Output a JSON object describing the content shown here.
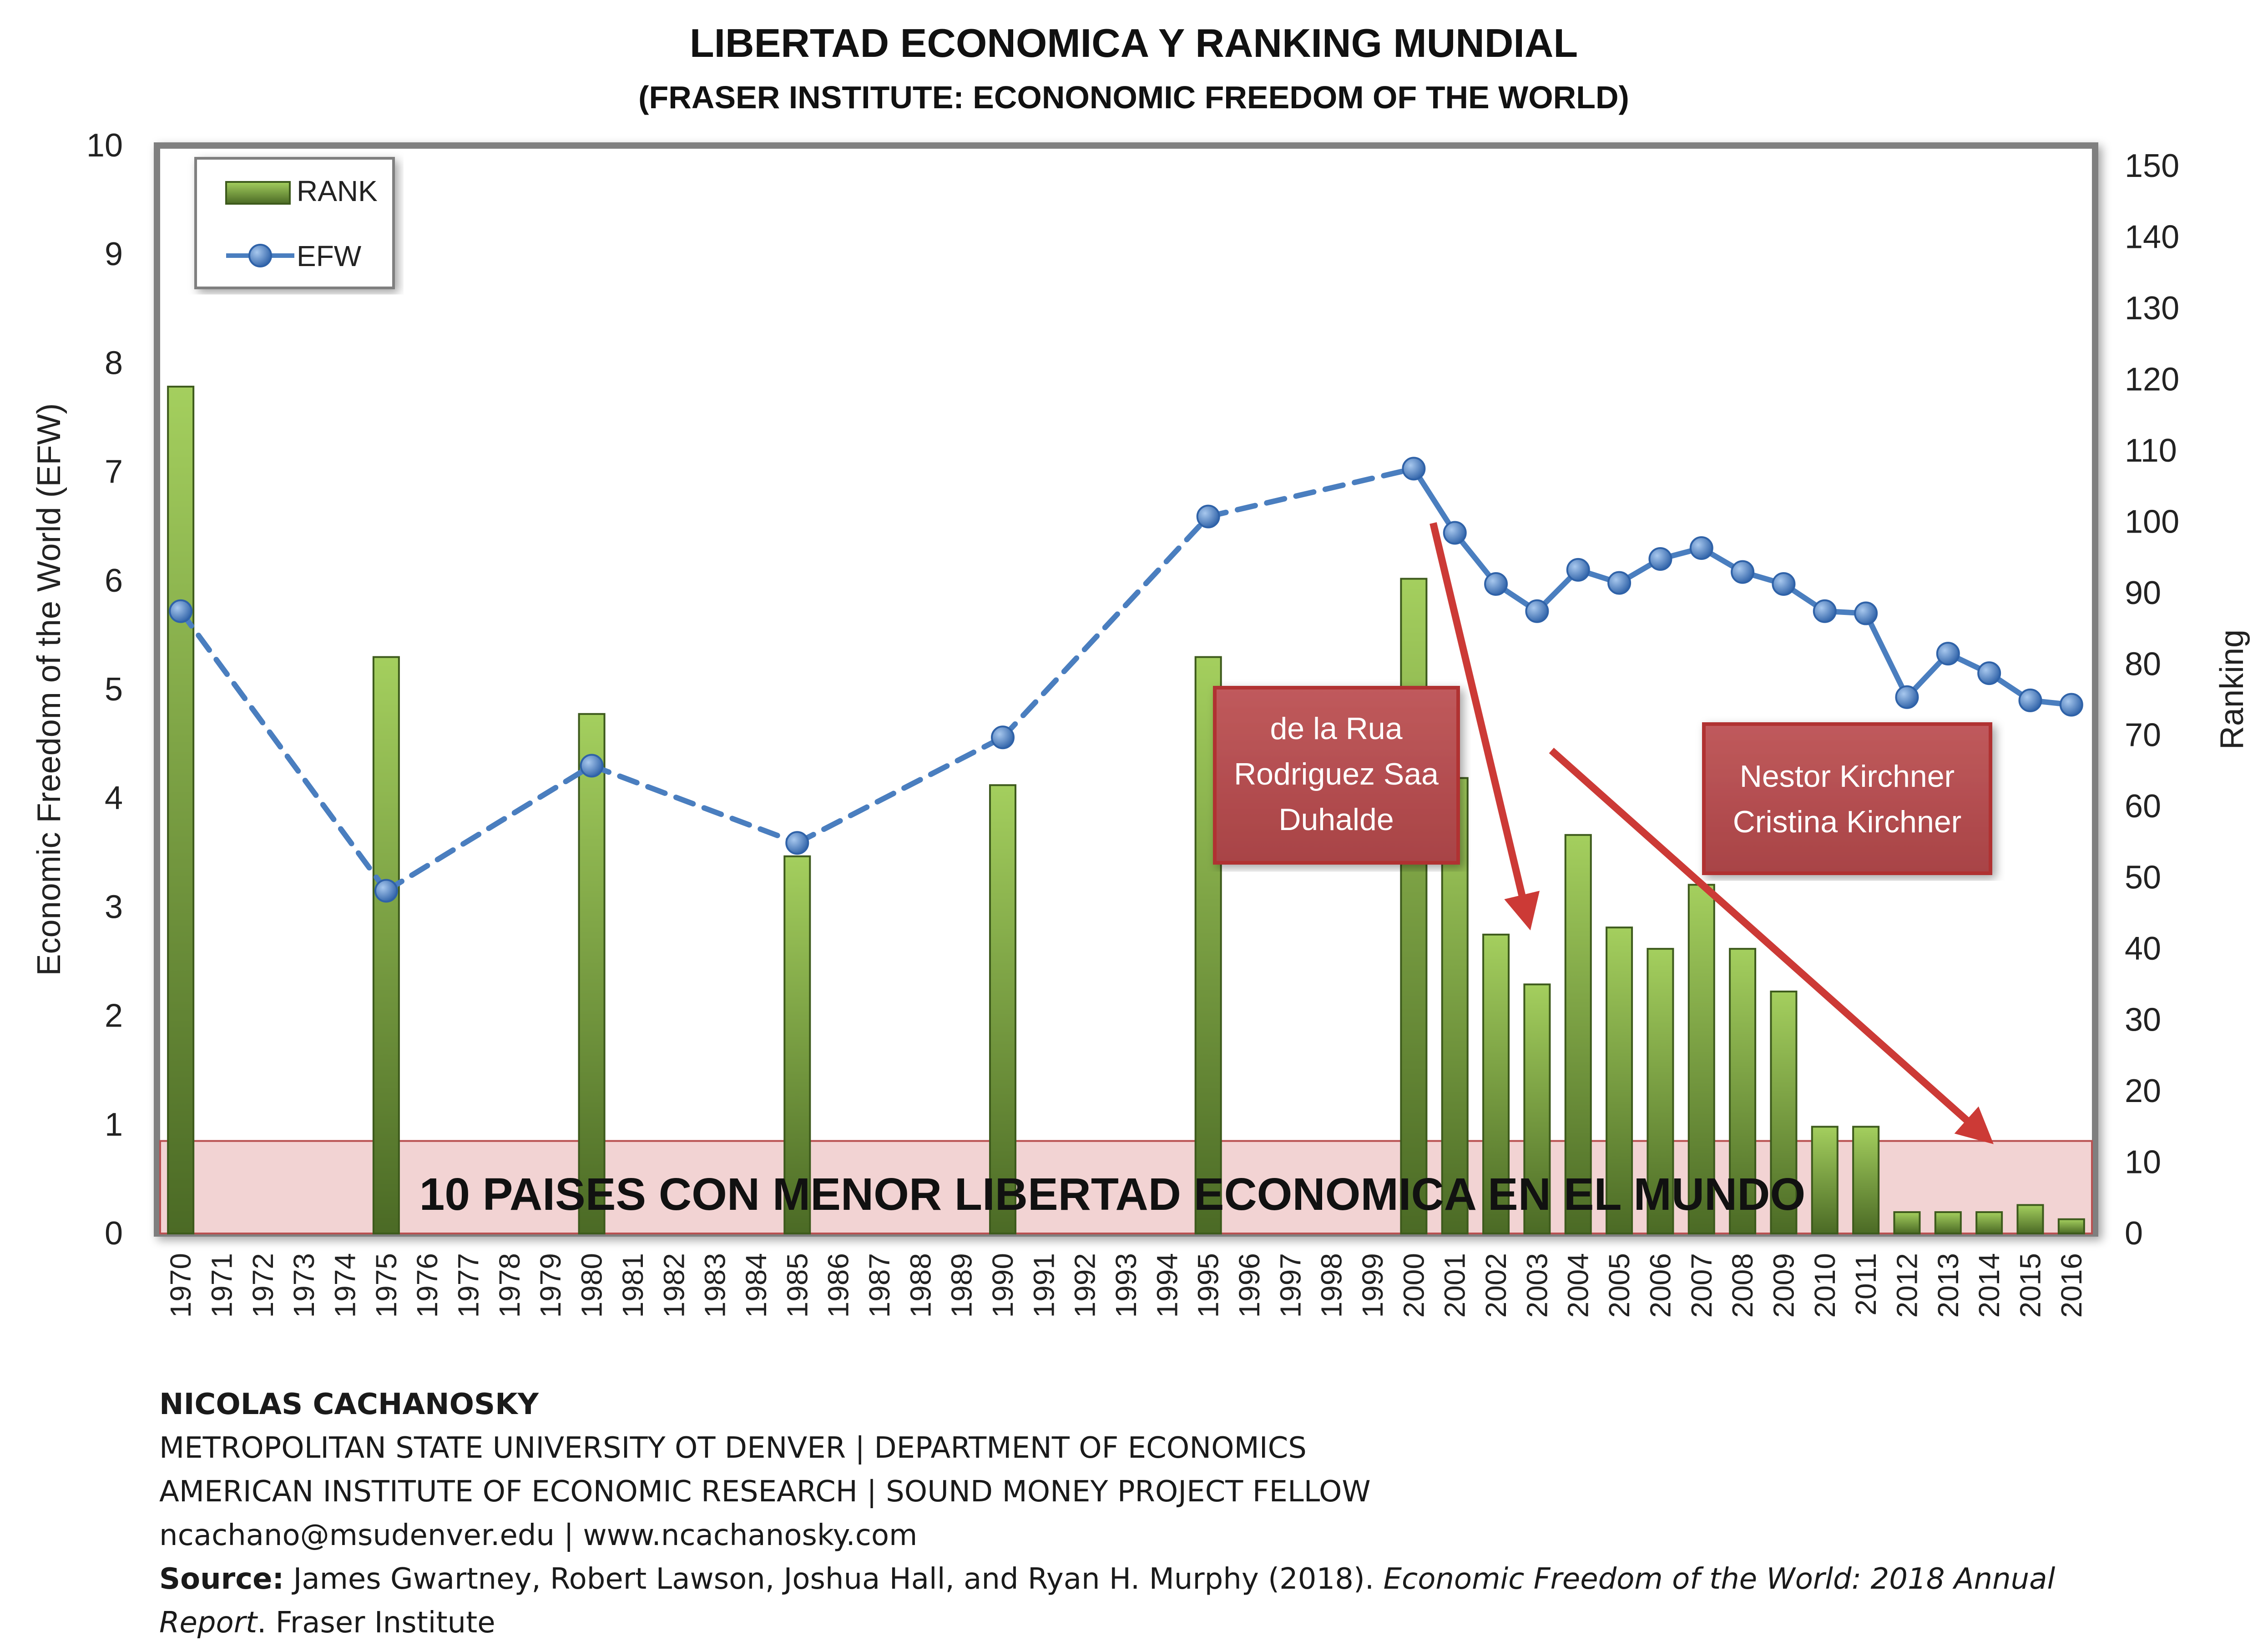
{
  "chart_data": {
    "type": "bar+line",
    "title": "LIBERTAD ECONOMICA Y RANKING MUNDIAL",
    "subtitle": "(FRASER INSTITUTE: ECONONOMIC FREEDOM OF THE WORLD)",
    "ylabel_left": "Economic Freedom of the World (EFW)",
    "ylabel_right": "Ranking",
    "ylim_left": [
      0,
      10
    ],
    "ylim_right": [
      0,
      150
    ],
    "left_ticks": [
      "0",
      "1",
      "2",
      "3",
      "4",
      "5",
      "6",
      "7",
      "8",
      "9",
      "10"
    ],
    "right_ticks": [
      "0",
      "10",
      "20",
      "30",
      "40",
      "50",
      "60",
      "70",
      "80",
      "90",
      "100",
      "110",
      "120",
      "130",
      "140",
      "150"
    ],
    "categories": [
      "1970",
      "1971",
      "1972",
      "1973",
      "1974",
      "1975",
      "1976",
      "1977",
      "1978",
      "1979",
      "1980",
      "1981",
      "1982",
      "1983",
      "1984",
      "1985",
      "1986",
      "1987",
      "1988",
      "1989",
      "1990",
      "1991",
      "1992",
      "1993",
      "1994",
      "1995",
      "1996",
      "1997",
      "1998",
      "1999",
      "2000",
      "2001",
      "2002",
      "2003",
      "2004",
      "2005",
      "2006",
      "2007",
      "2008",
      "2009",
      "2010",
      "2011",
      "2012",
      "2013",
      "2014",
      "2015",
      "2016"
    ],
    "legend": {
      "rank": "RANK",
      "efw": "EFW",
      "placement": "top-left"
    },
    "series": [
      {
        "name": "RANK",
        "axis": "right",
        "type": "bar",
        "values": [
          119,
          null,
          null,
          null,
          null,
          81,
          null,
          null,
          null,
          null,
          73,
          null,
          null,
          null,
          null,
          53,
          null,
          null,
          null,
          null,
          63,
          null,
          null,
          null,
          null,
          81,
          null,
          null,
          null,
          null,
          92,
          64,
          42,
          35,
          56,
          43,
          40,
          49,
          40,
          34,
          15,
          15,
          3,
          3,
          3,
          4,
          2
        ]
      },
      {
        "name": "EFW",
        "axis": "left",
        "type": "line",
        "values": [
          5.72,
          null,
          null,
          null,
          null,
          3.15,
          null,
          null,
          null,
          null,
          4.3,
          null,
          null,
          null,
          null,
          3.59,
          null,
          null,
          null,
          null,
          4.56,
          null,
          null,
          null,
          null,
          6.59,
          null,
          null,
          null,
          null,
          7.03,
          6.44,
          5.97,
          5.72,
          6.1,
          5.98,
          6.2,
          6.3,
          6.08,
          5.97,
          5.72,
          5.7,
          4.93,
          5.33,
          5.15,
          4.9,
          4.86
        ]
      }
    ],
    "band_label": "10 PAISES CON MENOR LIBERTAD ECONOMICA EN EL MUNDO",
    "band_range_ranking": [
      0,
      13
    ],
    "annotations": [
      {
        "lines": [
          "de la Rua",
          "Rodriguez Saa",
          "Duhalde"
        ]
      },
      {
        "lines": [
          "Nestor Kirchner",
          "Cristina Kirchner"
        ]
      }
    ],
    "colors": {
      "bar_top": "#9bc75a",
      "bar_bottom": "#4e6e28",
      "line": "#4a7ebf",
      "marker": "#3a6fb5",
      "band": "#f0cfcf",
      "annotation_box": "#b04c4e",
      "arrow": "#cc3a36"
    }
  },
  "credits": {
    "author": "NICOLAS CACHANOSKY",
    "line1": "METROPOLITAN STATE UNIVERSITY OT DENVER | DEPARTMENT OF ECONOMICS",
    "line2": "AMERICAN INSTITUTE OF ECONOMIC RESEARCH | SOUND MONEY PROJECT FELLOW",
    "line3": "ncachano@msudenver.edu | www.ncachanosky.com",
    "source_label": "Source:",
    "source_text": " James Gwartney, Robert Lawson, Joshua Hall, and Ryan H. Murphy (2018). ",
    "source_title": "Economic Freedom of the World: 2018 Annual Report",
    "source_end": ". Fraser Institute"
  }
}
